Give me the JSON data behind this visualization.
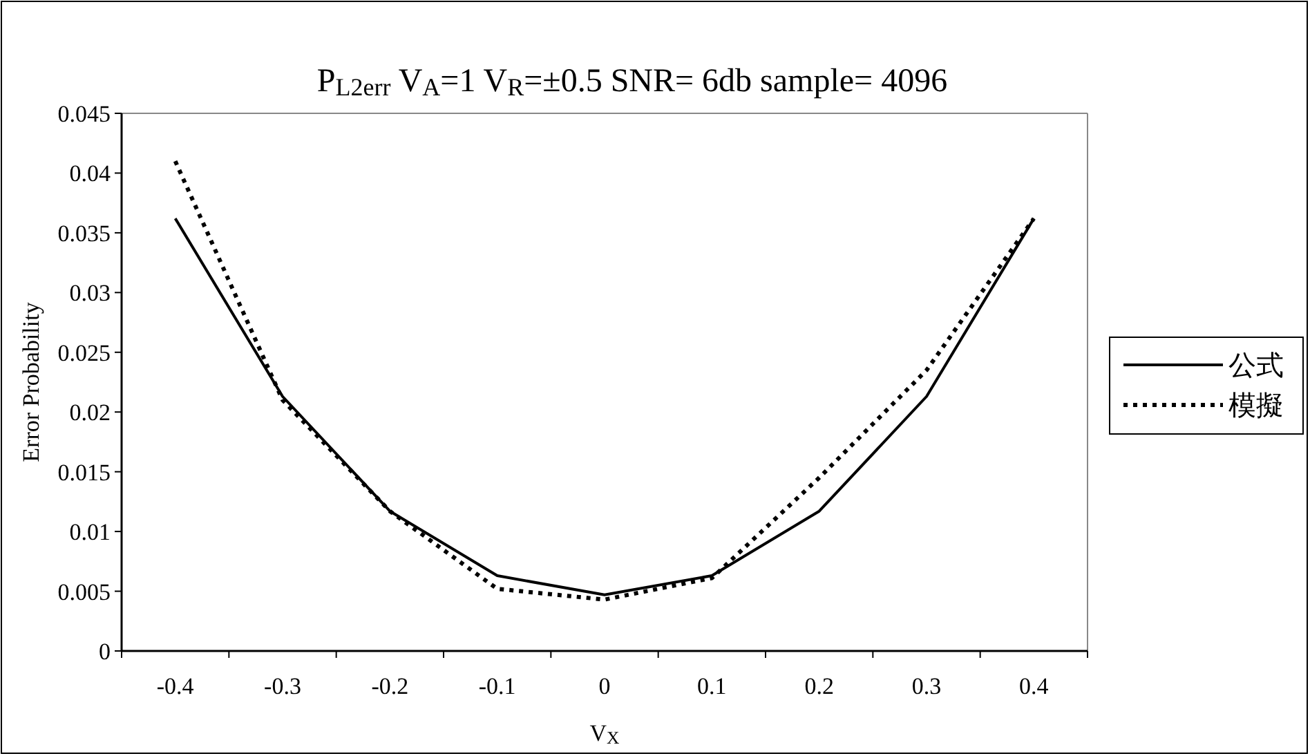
{
  "chart_data": {
    "type": "line",
    "title": "P$_{L2err}$ V$_{A}$=1 V$_{R}$=±0.5 SNR= 6db sample= 4096",
    "xlabel": "V$_{X}$",
    "ylabel": "Error Probability",
    "categories": [
      "-0.4",
      "-0.3",
      "-0.2",
      "-0.1",
      "0",
      "0.1",
      "0.2",
      "0.3",
      "0.4"
    ],
    "ylim": [
      0,
      0.045
    ],
    "yticks": [
      0,
      0.005,
      0.01,
      0.015,
      0.02,
      0.025,
      0.03,
      0.035,
      0.04,
      0.045
    ],
    "legend": "right",
    "grid": false,
    "marker": "none",
    "series": [
      {
        "name": "公式",
        "color": "#000000",
        "line_style": "solid",
        "values": [
          0.0362,
          0.0213,
          0.0117,
          0.0063,
          0.0047,
          0.0063,
          0.0117,
          0.0213,
          0.0362
        ]
      },
      {
        "name": "模擬",
        "color": "#000000",
        "line_style": "dotted",
        "values": [
          0.041,
          0.021,
          0.0117,
          0.0052,
          0.0043,
          0.0061,
          0.0145,
          0.0235,
          0.0362
        ]
      }
    ]
  }
}
